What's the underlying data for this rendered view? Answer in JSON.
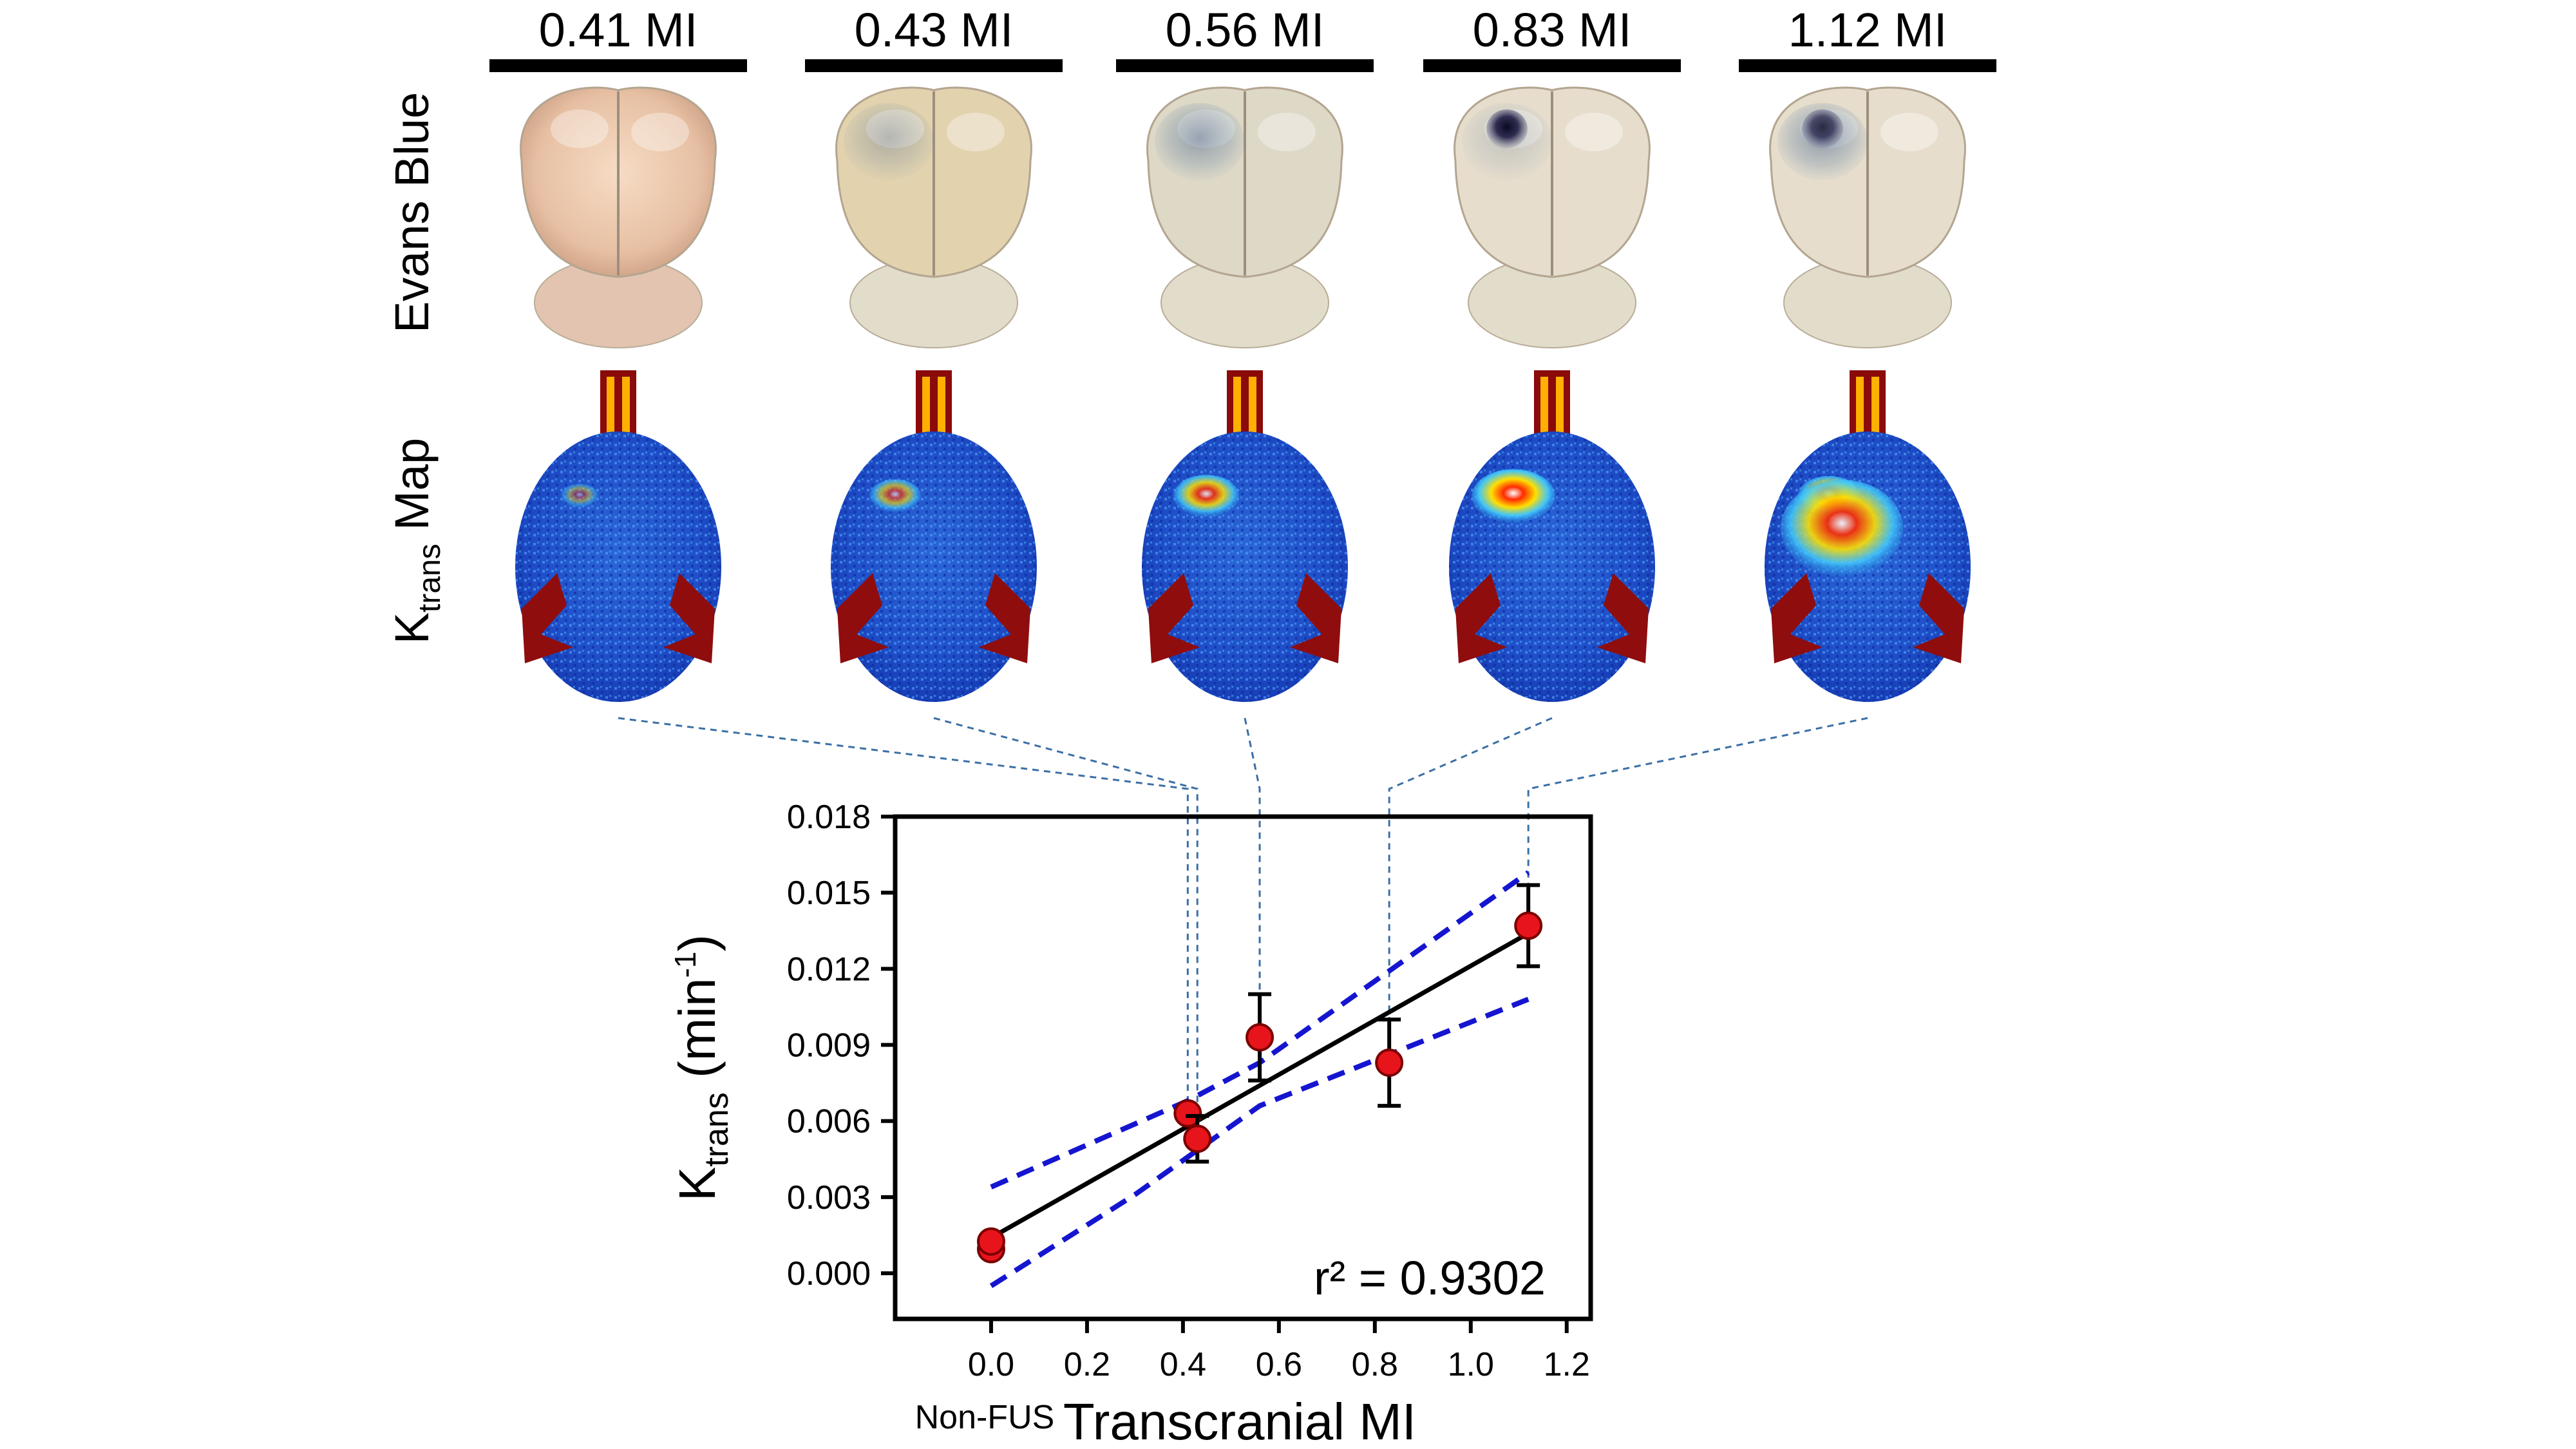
{
  "figure": {
    "panels": [
      {
        "label": "0.41 MI",
        "mi": 0.41,
        "dye": 0.0,
        "focal": 0.0,
        "hot": 0.25,
        "hot2": 0.0
      },
      {
        "label": "0.43 MI",
        "mi": 0.43,
        "dye": 0.3,
        "focal": 0.0,
        "hot": 0.45,
        "hot2": 0.0
      },
      {
        "label": "0.56 MI",
        "mi": 0.56,
        "dye": 0.45,
        "focal": 0.0,
        "hot": 0.65,
        "hot2": 0.0
      },
      {
        "label": "0.83 MI",
        "mi": 0.83,
        "dye": 0.2,
        "focal": 1.0,
        "hot": 0.9,
        "hot2": 0.0
      },
      {
        "label": "1.12 MI",
        "mi": 1.12,
        "dye": 0.5,
        "focal": 0.8,
        "hot": 0.6,
        "hot2": 1.0
      }
    ],
    "row_labels": {
      "evans": "Evans Blue",
      "ktrans_main": "K",
      "ktrans_sub": "trans",
      "ktrans_rest": " Map"
    }
  },
  "chart_data": {
    "type": "scatter",
    "title": "",
    "xlabel": "Transcranial MI",
    "ylabel_main": "K",
    "ylabel_sub": "trans",
    "ylabel_unit": " (min",
    "ylabel_sup": "-1",
    "ylabel_close": ")",
    "xlim": [
      -0.2,
      1.25
    ],
    "ylim": [
      -0.0018,
      0.018
    ],
    "xticks": [
      0.0,
      0.2,
      0.4,
      0.6,
      0.8,
      1.0,
      1.2
    ],
    "xtick_labels": [
      "0.0",
      "0.2",
      "0.4",
      "0.6",
      "0.8",
      "1.0",
      "1.2"
    ],
    "yticks": [
      0.0,
      0.003,
      0.006,
      0.009,
      0.012,
      0.015,
      0.018
    ],
    "ytick_labels": [
      "0.000",
      "0.003",
      "0.006",
      "0.009",
      "0.012",
      "0.015",
      "0.018"
    ],
    "extra_label": "Non-FUS",
    "annotation": "r² = 0.9302",
    "points": [
      {
        "x": 0.0,
        "y": 0.00095,
        "err": 0.0
      },
      {
        "x": 0.0,
        "y": 0.00125,
        "err": 0.0
      },
      {
        "x": 0.41,
        "y": 0.0063,
        "err": 0.0
      },
      {
        "x": 0.43,
        "y": 0.0053,
        "err": 0.0009
      },
      {
        "x": 0.56,
        "y": 0.0093,
        "err": 0.0017
      },
      {
        "x": 0.83,
        "y": 0.0083,
        "err": 0.0017
      },
      {
        "x": 1.12,
        "y": 0.0137,
        "err": 0.0016
      }
    ],
    "fit_line": {
      "x": [
        0.0,
        1.12
      ],
      "y": [
        0.0014,
        0.0134
      ]
    },
    "ci_upper": {
      "x": [
        0.0,
        0.41,
        0.56,
        1.12
      ],
      "y": [
        0.0034,
        0.0068,
        0.0083,
        0.0158
      ]
    },
    "ci_lower": {
      "x": [
        0.0,
        0.3,
        0.56,
        1.12
      ],
      "y": [
        -0.0005,
        0.0031,
        0.0066,
        0.0108
      ]
    },
    "colors": {
      "marker": "#e8141b",
      "marker_edge": "#7a0000",
      "fit": "#000000",
      "ci": "#1515d0",
      "guide": "#3b6fa6"
    }
  }
}
